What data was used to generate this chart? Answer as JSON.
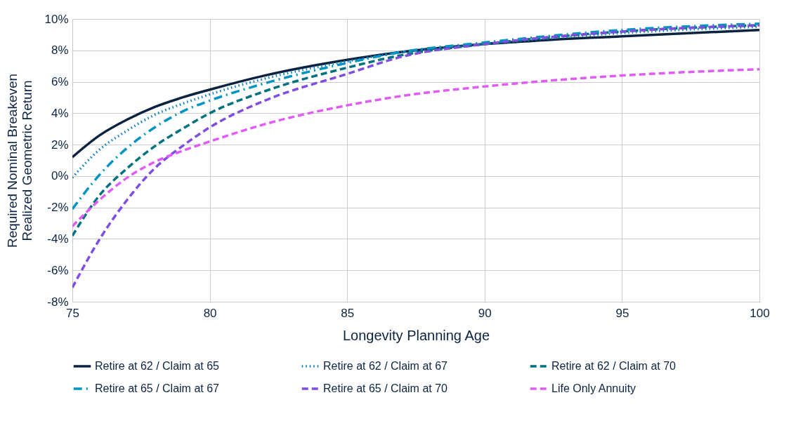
{
  "chart_data": {
    "type": "line",
    "xlabel": "Longevity Planning Age",
    "ylabel": "Required Nominal Breakeven\nRealized Geometric Return",
    "x": [
      75,
      76,
      77,
      78,
      79,
      80,
      82,
      85,
      87,
      90,
      95,
      100
    ],
    "series": [
      {
        "name": "Retire at 62 / Claim at 65",
        "color": "#0b2341",
        "line_style": "solid",
        "values": [
          1.2,
          2.6,
          3.6,
          4.4,
          5.0,
          5.5,
          6.4,
          7.4,
          7.9,
          8.4,
          8.9,
          9.3
        ]
      },
      {
        "name": "Retire at 62 / Claim at 67",
        "color": "#0079c1",
        "line_style": "dotted",
        "values": [
          -0.1,
          1.7,
          2.9,
          3.9,
          4.6,
          5.2,
          6.2,
          7.3,
          7.9,
          8.4,
          9.1,
          9.5
        ]
      },
      {
        "name": "Retire at 62 / Claim at 70",
        "color": "#00727f",
        "line_style": "dashed",
        "values": [
          -3.8,
          -1.2,
          0.5,
          1.9,
          3.0,
          4.0,
          5.4,
          6.9,
          7.7,
          8.4,
          9.2,
          9.6
        ]
      },
      {
        "name": "Retire at 65 / Claim at 67",
        "color": "#0095c0",
        "line_style": "dashdot",
        "values": [
          -2.1,
          0.1,
          1.8,
          3.1,
          4.1,
          4.8,
          5.9,
          7.2,
          7.9,
          8.5,
          9.3,
          9.7
        ]
      },
      {
        "name": "Retire at 65 / Claim at 70",
        "color": "#7f4ede",
        "line_style": "dashed",
        "values": [
          -7.1,
          -4.0,
          -1.5,
          0.5,
          1.9,
          3.1,
          4.8,
          6.5,
          7.6,
          8.4,
          9.2,
          9.6
        ]
      },
      {
        "name": "Life Only Annuity",
        "color": "#e05cf5",
        "line_style": "dashed",
        "values": [
          -3.2,
          -1.5,
          -0.1,
          0.9,
          1.6,
          2.2,
          3.3,
          4.5,
          5.1,
          5.7,
          6.4,
          6.8
        ]
      }
    ],
    "xlim": [
      75,
      100
    ],
    "xticks": [
      75,
      80,
      85,
      90,
      95,
      100
    ],
    "ylim": [
      -8,
      10
    ],
    "yticks": [
      {
        "value": -8,
        "label": "-8%"
      },
      {
        "value": -6,
        "label": "-6%"
      },
      {
        "value": -4,
        "label": "-4%"
      },
      {
        "value": -2,
        "label": "-2%"
      },
      {
        "value": 0,
        "label": "0%"
      },
      {
        "value": 2,
        "label": "2%"
      },
      {
        "value": 4,
        "label": "4%"
      },
      {
        "value": 6,
        "label": "6%"
      },
      {
        "value": 8,
        "label": "8%"
      },
      {
        "value": 10,
        "label": "10%"
      }
    ],
    "grid": true,
    "legend": "bottom",
    "marker": "none"
  }
}
